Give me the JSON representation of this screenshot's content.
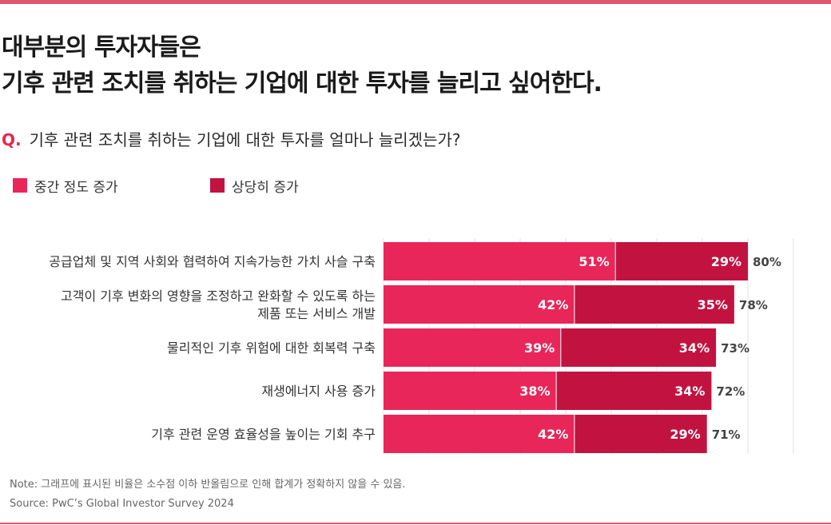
{
  "title_line1": "대부분의 투자자들은",
  "title_line2": "기후 관련 조치를 취하는 기업에 대한 투자를 늘리고 싶어한다.",
  "question_mark": "Q.",
  "question_text": "기후 관련 조치를 취하는 기업에 대한 투자를 얼마나 늘리겠는가?",
  "note": "Note: 그래프에 표시된 비율은 소수점 이하 반올림으로 인해 합계가 정확하지 않을 수 있음.",
  "source": "Source: PwC’s Global Investor Survey 2024",
  "colors": {
    "moderate": "#e8265a",
    "significant": "#c21340",
    "accent": "#e0566f"
  },
  "chart_data": {
    "type": "bar",
    "orientation": "horizontal",
    "stacked": true,
    "xlim": [
      0,
      100
    ],
    "grid": true,
    "legend_position": "top-left",
    "categories": [
      [
        "공급업체 및 지역 사회와 협력하여 지속가능한 가치 사슬 구축"
      ],
      [
        "고객이 기후 변화의 영향을 조정하고 완화할 수 있도록 하는",
        "제품 또는 서비스 개발"
      ],
      [
        "물리적인 기후 위험에 대한 회복력 구축"
      ],
      [
        "재생에너지 사용 증가"
      ],
      [
        "기후 관련 운영 효율성을 높이는 기회 추구"
      ]
    ],
    "series": [
      {
        "name": "중간 정도 증가",
        "values": [
          51,
          42,
          39,
          38,
          42
        ],
        "labels": [
          "51%",
          "42%",
          "39%",
          "38%",
          "42%"
        ]
      },
      {
        "name": "상당히 증가",
        "values": [
          29,
          35,
          34,
          34,
          29
        ],
        "labels": [
          "29%",
          "35%",
          "34%",
          "34%",
          "29%"
        ]
      }
    ],
    "totals": [
      "80%",
      "78%",
      "73%",
      "72%",
      "71%"
    ]
  }
}
